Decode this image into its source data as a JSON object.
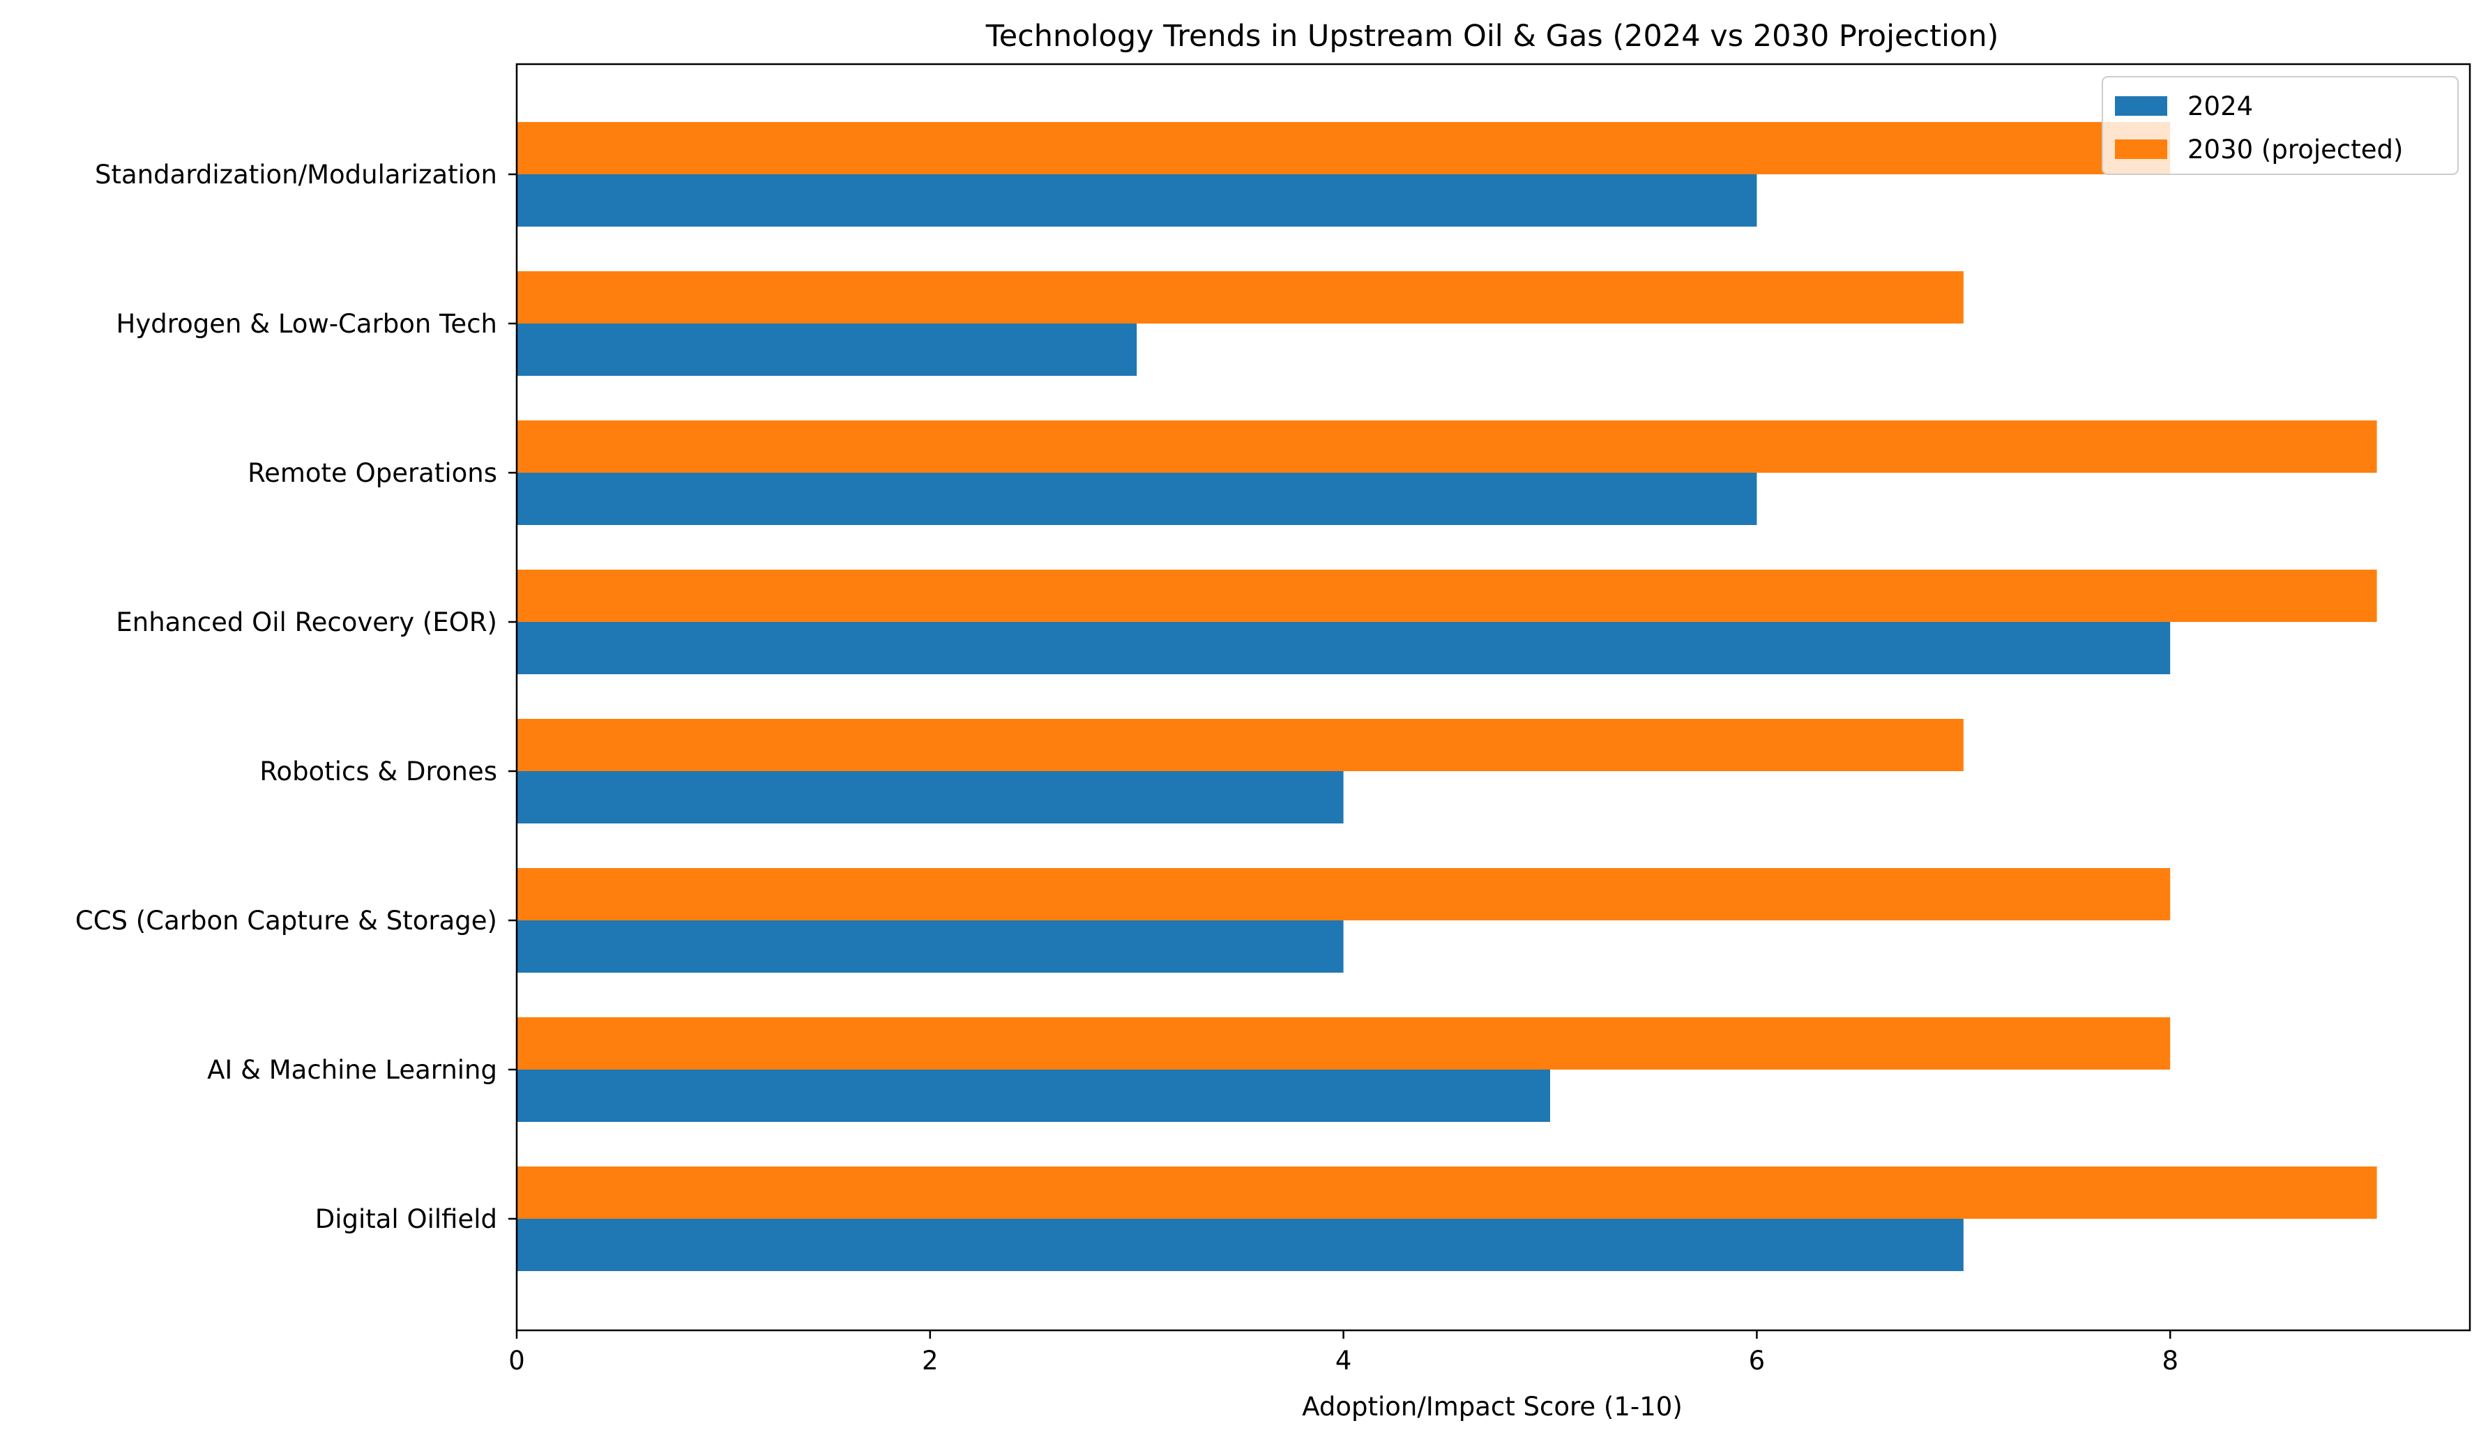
{
  "chart_data": {
    "type": "bar",
    "orientation": "horizontal",
    "title": "Technology Trends in Upstream Oil & Gas (2024 vs 2030 Projection)",
    "xlabel": "Adoption/Impact Score (1-10)",
    "ylabel": "",
    "xlim": [
      0,
      9.45
    ],
    "xticks": [
      0,
      2,
      4,
      6,
      8
    ],
    "grid": false,
    "legend_position": "top-right",
    "categories": [
      "Digital Oilfield",
      "AI & Machine Learning",
      "CCS (Carbon Capture & Storage)",
      "Robotics & Drones",
      "Enhanced Oil Recovery (EOR)",
      "Remote Operations",
      "Hydrogen & Low-Carbon Tech",
      "Standardization/Modularization"
    ],
    "series": [
      {
        "name": "2024",
        "color": "#1f77b4",
        "values": [
          7,
          5,
          4,
          4,
          8,
          6,
          3,
          6
        ]
      },
      {
        "name": "2030 (projected)",
        "color": "#ff7f0e",
        "values": [
          9,
          8,
          8,
          7,
          9,
          9,
          7,
          8
        ]
      }
    ]
  }
}
